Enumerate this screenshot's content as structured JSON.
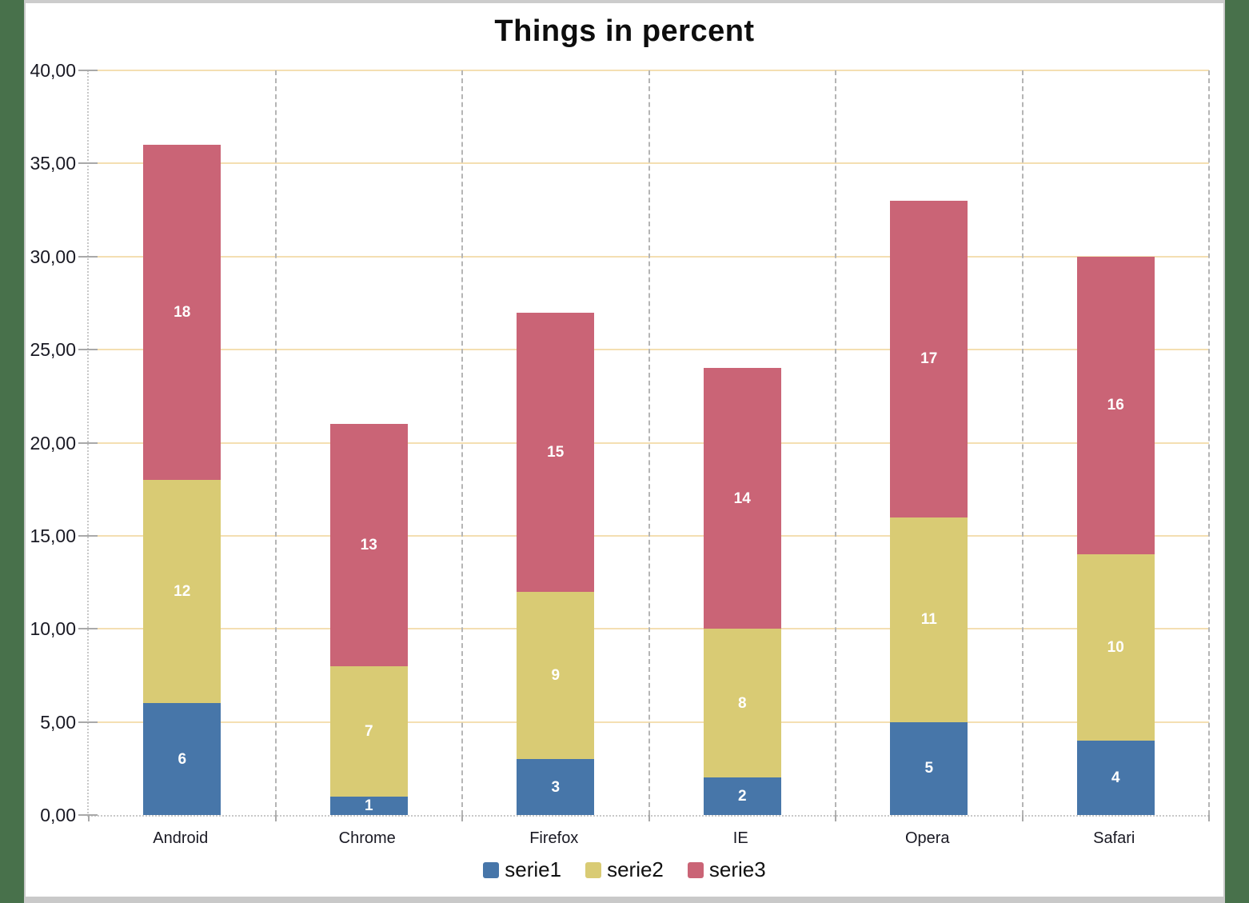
{
  "window": {
    "desktop_color": "#48714b",
    "frame_color": "#c9c9c9",
    "background_color": "#ffffff"
  },
  "chart_data": {
    "type": "bar",
    "stacked": true,
    "title": "Things in percent",
    "categories": [
      "Android",
      "Chrome",
      "Firefox",
      "IE",
      "Opera",
      "Safari"
    ],
    "series": [
      {
        "name": "serie1",
        "color": "#4776a9",
        "values": [
          6,
          1,
          3,
          2,
          5,
          4
        ]
      },
      {
        "name": "serie2",
        "color": "#d9cb74",
        "values": [
          12,
          7,
          9,
          8,
          11,
          10
        ]
      },
      {
        "name": "serie3",
        "color": "#ca6476",
        "values": [
          18,
          13,
          15,
          14,
          17,
          16
        ]
      }
    ],
    "totals": [
      36,
      21,
      27,
      24,
      33,
      30
    ],
    "xlabel": "",
    "ylabel": "",
    "ylim": [
      0,
      40
    ],
    "ytick_step": 5,
    "ytick_labels": [
      "0,00",
      "5,00",
      "10,00",
      "15,00",
      "20,00",
      "25,00",
      "30,00",
      "35,00",
      "40,00"
    ],
    "grid": {
      "horizontal": true,
      "horizontal_color": "#f4dfb2",
      "vertical": true,
      "vertical_color": "#b5b5b5",
      "axis_color": "#c8c8c8",
      "tick_color": "#a9a9a9"
    },
    "value_labels": {
      "position": "inside-center",
      "color": "#ffffff"
    },
    "legend": {
      "position": "bottom",
      "entries": [
        "serie1",
        "serie2",
        "serie3"
      ]
    }
  }
}
